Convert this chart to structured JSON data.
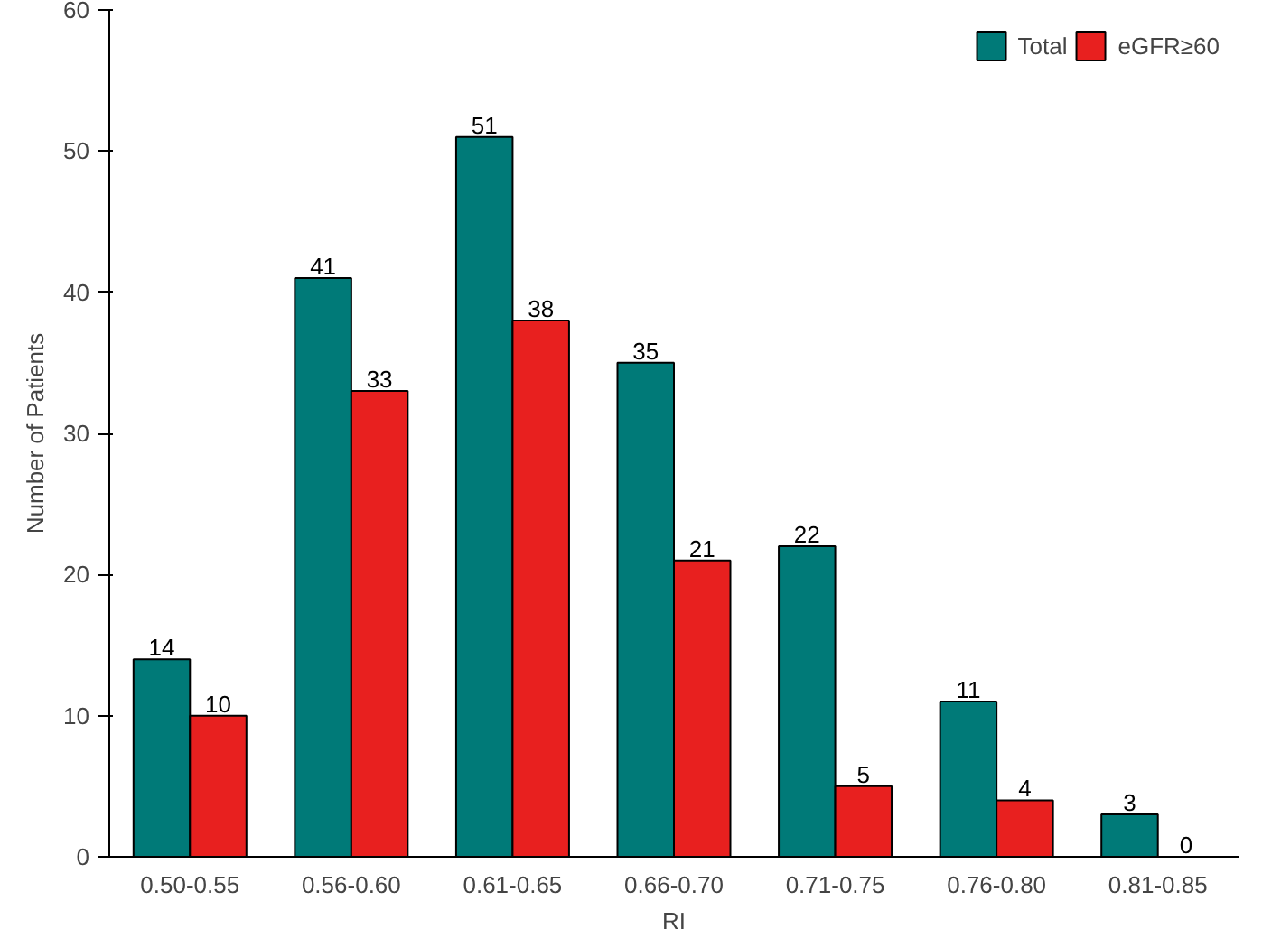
{
  "chart_data": {
    "type": "bar",
    "xlabel": "RI",
    "ylabel": "Number of Patients",
    "categories": [
      "0.50-0.55",
      "0.56-0.60",
      "0.61-0.65",
      "0.66-0.70",
      "0.71-0.75",
      "0.76-0.80",
      "0.81-0.85"
    ],
    "series": [
      {
        "name": "Total",
        "color": "#007a78",
        "values": [
          14,
          41,
          51,
          35,
          22,
          11,
          3
        ]
      },
      {
        "name": "eGFR≥60",
        "color": "#e8201f",
        "values": [
          10,
          33,
          38,
          21,
          5,
          4,
          0
        ]
      }
    ],
    "ylim": [
      0,
      60
    ],
    "yticks": [
      0,
      10,
      20,
      30,
      40,
      50,
      60
    ],
    "grid": false,
    "legend": "top right",
    "data_labels": true
  }
}
